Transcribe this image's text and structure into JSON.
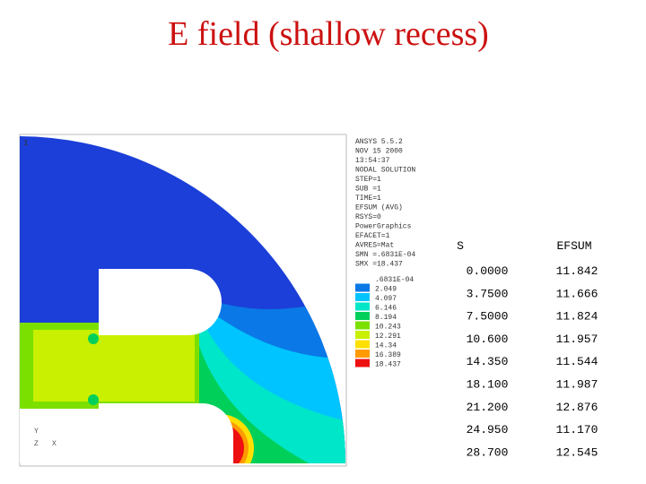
{
  "title": "E field (shallow recess)",
  "plot": {
    "window_number": "1",
    "info_lines": [
      "ANSYS 5.5.2",
      "NOV 15 2000",
      "13:54:37",
      "NODAL SOLUTION",
      "STEP=1",
      "SUB =1",
      "TIME=1",
      "EFSUM (AVG)",
      "RSYS=0",
      "PowerGraphics",
      "EFACET=1",
      "AVRES=Mat",
      "SMN =.6831E-04",
      "SMX =18.437"
    ],
    "legend": [
      {
        "label": ".6831E-04",
        "color": "#1b3fd8"
      },
      {
        "label": "2.049",
        "color": "#0a78e6"
      },
      {
        "label": "4.097",
        "color": "#00c4ff"
      },
      {
        "label": "6.146",
        "color": "#00e6c8"
      },
      {
        "label": "8.194",
        "color": "#00d05a"
      },
      {
        "label": "10.243",
        "color": "#7be000"
      },
      {
        "label": "12.291",
        "color": "#c8f000"
      },
      {
        "label": "14.34",
        "color": "#ffe000"
      },
      {
        "label": "16.389",
        "color": "#ff9a00"
      },
      {
        "label": "18.437",
        "color": "#ee1010"
      }
    ],
    "axis_labels": [
      "Y",
      "Z",
      "X"
    ]
  },
  "table": {
    "columns": [
      "S",
      "EFSUM"
    ],
    "rows": [
      [
        "0.0000",
        "11.842"
      ],
      [
        "3.7500",
        "11.666"
      ],
      [
        "7.5000",
        "11.824"
      ],
      [
        "10.600",
        "11.957"
      ],
      [
        "14.350",
        "11.544"
      ],
      [
        "18.100",
        "11.987"
      ],
      [
        "21.200",
        "12.876"
      ],
      [
        "24.950",
        "11.170"
      ],
      [
        "28.700",
        "12.545"
      ]
    ]
  }
}
